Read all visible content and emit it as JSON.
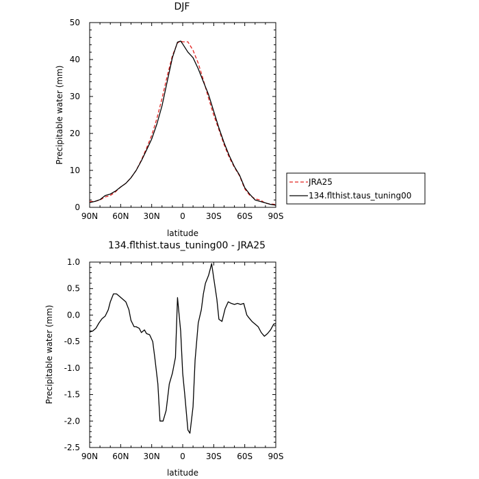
{
  "chart_data": [
    {
      "type": "line",
      "title": "DJF",
      "xlabel": "latitude",
      "ylabel": "Precipitable water (mm)",
      "xlim": [
        90,
        -90
      ],
      "ylim": [
        0,
        50
      ],
      "x_ticks": [
        90,
        60,
        30,
        0,
        -30,
        -60,
        -90
      ],
      "x_tick_labels": [
        "90N",
        "60N",
        "30N",
        "0",
        "30S",
        "60S",
        "90S"
      ],
      "y_ticks": [
        0,
        10,
        20,
        30,
        40,
        50
      ],
      "y_tick_labels": [
        "0",
        "10",
        "20",
        "30",
        "40",
        "50"
      ],
      "legend_position": "right",
      "series": [
        {
          "name": "JRA25",
          "color": "#e0201e",
          "dash": "dashed",
          "x": [
            90,
            85,
            80,
            75,
            70,
            65,
            60,
            55,
            50,
            45,
            40,
            35,
            30,
            25,
            20,
            15,
            10,
            5,
            2,
            0,
            -5,
            -10,
            -15,
            -20,
            -25,
            -30,
            -35,
            -40,
            -45,
            -50,
            -55,
            -60,
            -65,
            -70,
            -75,
            -80,
            -85,
            -90
          ],
          "y": [
            1.6,
            1.6,
            2.0,
            2.8,
            3.2,
            4.2,
            5.5,
            6.5,
            8.0,
            10.0,
            12.8,
            16.0,
            19.5,
            24.0,
            29.5,
            35.5,
            41.0,
            44.5,
            45.0,
            44.8,
            44.8,
            42.5,
            39.0,
            34.5,
            29.5,
            25.0,
            21.0,
            17.0,
            13.5,
            10.8,
            8.5,
            5.0,
            3.2,
            2.3,
            2.0,
            1.1,
            0.9,
            0.8
          ]
        },
        {
          "name": "134.flthist.taus_tuning00",
          "color": "#000000",
          "dash": "solid",
          "x": [
            90,
            85,
            80,
            75,
            70,
            65,
            60,
            55,
            50,
            45,
            40,
            35,
            30,
            25,
            20,
            15,
            10,
            5,
            2,
            0,
            -5,
            -10,
            -15,
            -20,
            -25,
            -30,
            -35,
            -40,
            -45,
            -50,
            -55,
            -60,
            -65,
            -70,
            -75,
            -80,
            -85,
            -90
          ],
          "y": [
            1.3,
            1.6,
            2.1,
            3.2,
            3.6,
            4.4,
            5.5,
            6.5,
            8.0,
            10.0,
            12.6,
            15.5,
            18.5,
            22.5,
            27.5,
            34.0,
            40.5,
            44.7,
            45.0,
            44.2,
            42.0,
            40.5,
            37.5,
            34.0,
            30.5,
            26.0,
            21.5,
            17.5,
            14.0,
            11.0,
            8.7,
            5.3,
            3.5,
            2.0,
            1.6,
            1.2,
            0.8,
            0.6
          ]
        }
      ]
    },
    {
      "type": "line",
      "title": "134.flthist.taus_tuning00 - JRA25",
      "xlabel": "latitude",
      "ylabel": "Precipitable water (mm)",
      "xlim": [
        90,
        -90
      ],
      "ylim": [
        -2.5,
        1.0
      ],
      "x_ticks": [
        90,
        60,
        30,
        0,
        -30,
        -60,
        -90
      ],
      "x_tick_labels": [
        "90N",
        "60N",
        "30N",
        "0",
        "30S",
        "60S",
        "90S"
      ],
      "y_ticks": [
        -2.5,
        -2.0,
        -1.5,
        -1.0,
        -0.5,
        0.0,
        0.5,
        1.0
      ],
      "y_tick_labels": [
        "-2.5",
        "-2.0",
        "-1.5",
        "-1.0",
        "-0.5",
        "0.0",
        "0.5",
        "1.0"
      ],
      "series": [
        {
          "color": "#000000",
          "dash": "solid",
          "x": [
            90,
            87,
            84,
            81,
            78,
            75,
            72,
            70,
            67,
            64,
            61,
            58,
            55,
            52,
            50,
            47,
            45,
            42,
            40,
            37,
            35,
            32,
            29,
            27,
            24,
            22,
            19,
            16,
            13,
            10,
            7,
            5,
            2,
            0,
            -2,
            -5,
            -7,
            -10,
            -12,
            -15,
            -18,
            -20,
            -22,
            -25,
            -28,
            -30,
            -33,
            -35,
            -38,
            -41,
            -44,
            -47,
            -50,
            -53,
            -56,
            -59,
            -62,
            -64,
            -67,
            -70,
            -73,
            -76,
            -79,
            -82,
            -85,
            -88,
            -90
          ],
          "y": [
            -0.32,
            -0.3,
            -0.25,
            -0.15,
            -0.07,
            -0.02,
            0.1,
            0.25,
            0.4,
            0.4,
            0.35,
            0.3,
            0.25,
            0.1,
            -0.1,
            -0.22,
            -0.22,
            -0.25,
            -0.33,
            -0.28,
            -0.35,
            -0.37,
            -0.5,
            -0.8,
            -1.3,
            -2.0,
            -2.0,
            -1.8,
            -1.3,
            -1.1,
            -0.8,
            0.33,
            -0.3,
            -1.1,
            -1.5,
            -2.17,
            -2.23,
            -1.73,
            -0.85,
            -0.15,
            0.1,
            0.4,
            0.6,
            0.75,
            0.97,
            0.7,
            0.3,
            -0.08,
            -0.12,
            0.12,
            0.25,
            0.22,
            0.2,
            0.22,
            0.2,
            0.22,
            0.0,
            -0.05,
            -0.12,
            -0.17,
            -0.22,
            -0.33,
            -0.4,
            -0.35,
            -0.28,
            -0.17,
            -0.16
          ]
        }
      ]
    }
  ]
}
